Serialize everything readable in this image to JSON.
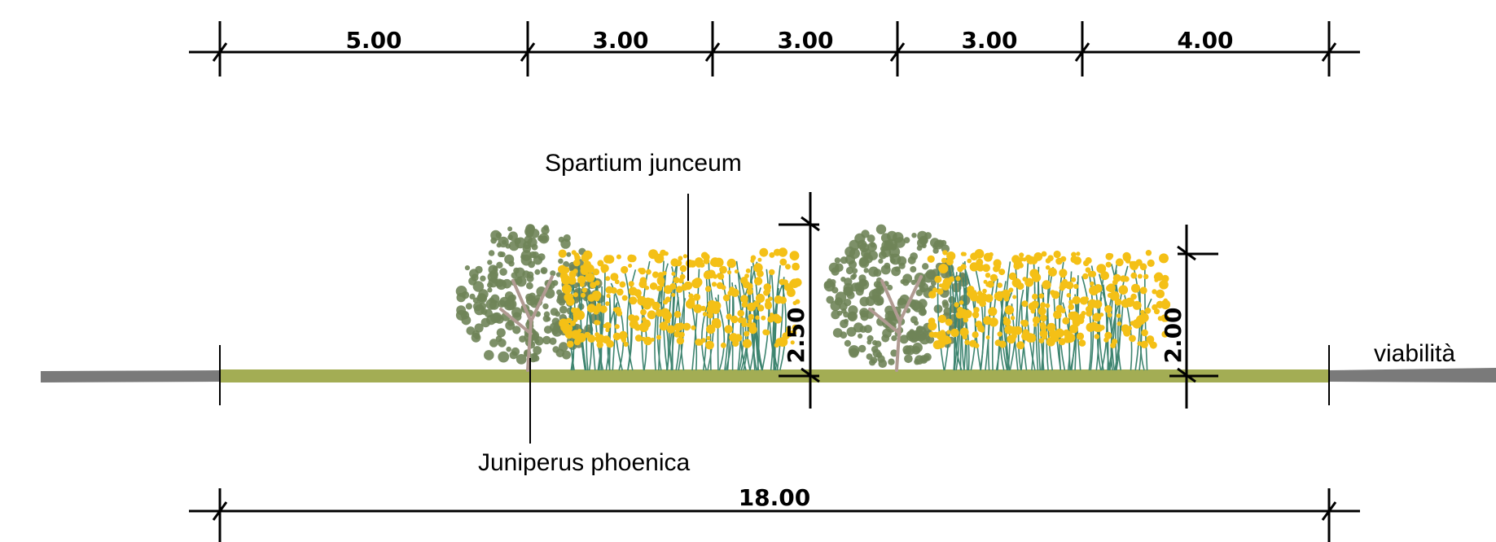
{
  "colors": {
    "line": "#000000",
    "road": "#7a7a7a",
    "ground": "#a3ad54",
    "juniper_foliage": "#6f8458",
    "juniper_trunk": "#b19a92",
    "broom_flower": "#f4c016",
    "broom_stem": "#3e8570"
  },
  "dimensions": {
    "top": [
      "5.00",
      "3.00",
      "3.00",
      "3.00",
      "4.00"
    ],
    "total": "18.00",
    "height_1": "2.50",
    "height_2": "2.00"
  },
  "labels": {
    "spartium": "Spartium junceum",
    "juniperus": "Juniperus phoenica",
    "road": "viabilità"
  }
}
